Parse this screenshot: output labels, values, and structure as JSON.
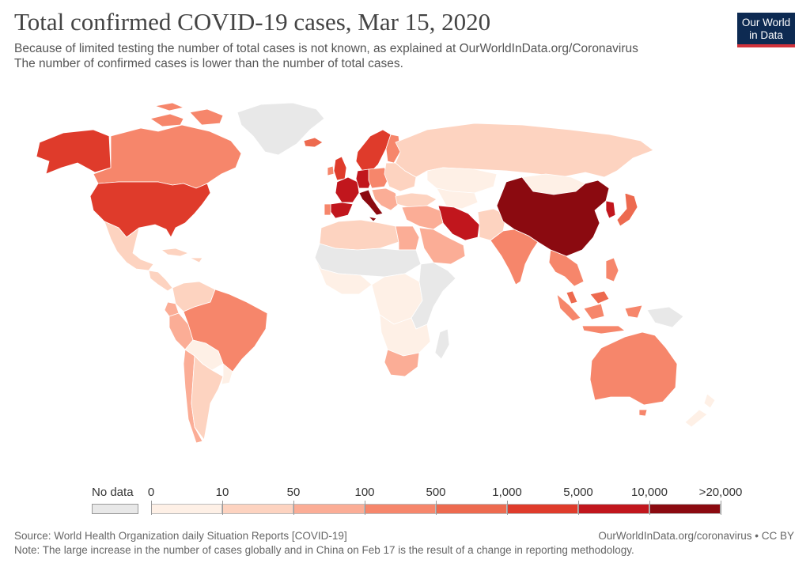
{
  "title": "Total confirmed COVID-19 cases, Mar 15, 2020",
  "subtitle": "Because of limited testing the number of total cases is not known, as explained at OurWorldInData.org/Coronavirus\n The number of confirmed cases is lower than the number of total cases.",
  "logo": {
    "line1": "Our World",
    "line2": "in Data"
  },
  "legend": {
    "no_data_label": "No data",
    "no_data_color": "#e8e8e8",
    "bins": [
      {
        "from": "0",
        "to": "10",
        "color": "#fef0e6"
      },
      {
        "from": "10",
        "to": "50",
        "color": "#fdd3c0"
      },
      {
        "from": "50",
        "to": "100",
        "color": "#fbad96"
      },
      {
        "from": "100",
        "to": "500",
        "color": "#f6866b"
      },
      {
        "from": "500",
        "to": "1,000",
        "color": "#ed6a4f"
      },
      {
        "from": "1,000",
        "to": "5,000",
        "color": "#df3b2b"
      },
      {
        "from": "5,000",
        "to": "10,000",
        "color": "#c1161d"
      },
      {
        "from": "10,000",
        "to": ">20,000",
        "color": "#8b0a10"
      }
    ],
    "tick_labels": [
      "0",
      "10",
      "50",
      "100",
      "500",
      "1,000",
      "5,000",
      "10,000",
      ">20,000"
    ]
  },
  "source": "Source: World Health Organization daily Situation Reports [COVID-19]",
  "note": "Note: The large increase in the number of cases globally and in China on Feb 17 is the result of a change in reporting methodology.",
  "credit": "OurWorldInData.org/coronavirus • CC BY",
  "regions": [
    {
      "name": "greenland",
      "bin": -1
    },
    {
      "name": "alaska-usa",
      "bin": 5
    },
    {
      "name": "canada",
      "bin": 3
    },
    {
      "name": "canada-islands",
      "bin": 3
    },
    {
      "name": "usa",
      "bin": 5
    },
    {
      "name": "mexico",
      "bin": 1
    },
    {
      "name": "central-america",
      "bin": 1
    },
    {
      "name": "caribbean",
      "bin": 1
    },
    {
      "name": "colombia-venezuela",
      "bin": 1
    },
    {
      "name": "ecuador",
      "bin": 2
    },
    {
      "name": "peru",
      "bin": 2
    },
    {
      "name": "brazil",
      "bin": 3
    },
    {
      "name": "bolivia-paraguay",
      "bin": 0
    },
    {
      "name": "chile",
      "bin": 2
    },
    {
      "name": "argentina",
      "bin": 1
    },
    {
      "name": "uruguay",
      "bin": 0
    },
    {
      "name": "iceland",
      "bin": 4
    },
    {
      "name": "norway-sweden",
      "bin": 5
    },
    {
      "name": "finland",
      "bin": 3
    },
    {
      "name": "uk",
      "bin": 5
    },
    {
      "name": "ireland",
      "bin": 3
    },
    {
      "name": "france",
      "bin": 6
    },
    {
      "name": "spain",
      "bin": 6
    },
    {
      "name": "portugal",
      "bin": 3
    },
    {
      "name": "germany",
      "bin": 6
    },
    {
      "name": "italy",
      "bin": 7
    },
    {
      "name": "poland-central-europe",
      "bin": 3
    },
    {
      "name": "balkans",
      "bin": 2
    },
    {
      "name": "baltics-belarus-ukraine",
      "bin": 1
    },
    {
      "name": "russia",
      "bin": 1
    },
    {
      "name": "kazakhstan",
      "bin": 0
    },
    {
      "name": "central-asia",
      "bin": 0
    },
    {
      "name": "turkey-caucasus",
      "bin": 1
    },
    {
      "name": "iran",
      "bin": 6
    },
    {
      "name": "middle-east",
      "bin": 2
    },
    {
      "name": "saudi-arabia",
      "bin": 2
    },
    {
      "name": "afghanistan-pakistan",
      "bin": 1
    },
    {
      "name": "india",
      "bin": 3
    },
    {
      "name": "mongolia",
      "bin": 0
    },
    {
      "name": "china",
      "bin": 7
    },
    {
      "name": "korea",
      "bin": 6
    },
    {
      "name": "japan",
      "bin": 4
    },
    {
      "name": "southeast-asia",
      "bin": 3
    },
    {
      "name": "philippines",
      "bin": 3
    },
    {
      "name": "indonesia",
      "bin": 3
    },
    {
      "name": "malaysia",
      "bin": 4
    },
    {
      "name": "new-guinea",
      "bin": -1
    },
    {
      "name": "australia",
      "bin": 3
    },
    {
      "name": "new-zealand",
      "bin": 0
    },
    {
      "name": "north-africa",
      "bin": 1
    },
    {
      "name": "egypt",
      "bin": 2
    },
    {
      "name": "sahel",
      "bin": -1
    },
    {
      "name": "west-africa",
      "bin": 0
    },
    {
      "name": "central-africa",
      "bin": 0
    },
    {
      "name": "east-africa",
      "bin": -1
    },
    {
      "name": "southern-africa",
      "bin": 0
    },
    {
      "name": "south-africa",
      "bin": 2
    },
    {
      "name": "madagascar",
      "bin": -1
    }
  ]
}
